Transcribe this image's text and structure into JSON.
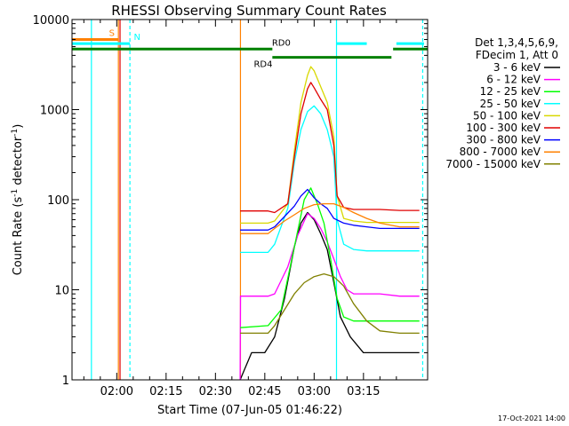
{
  "chart_data": {
    "type": "line",
    "title": "RHESSI Observing Summary Count Rates",
    "xlabel": "Start Time (07-Jun-05 01:46:22)",
    "ylabel_main": "Count Rate (s",
    "ylabel_sup1": "-1",
    "ylabel_mid": " detector",
    "ylabel_sup2": "-1",
    "ylabel_end": ")",
    "yscale": "log",
    "xlim_min": [
      106.4,
      214.5
    ],
    "ylim": [
      1,
      10000
    ],
    "x_ticks": [
      {
        "value": 120,
        "label": "02:00"
      },
      {
        "value": 135,
        "label": "02:15"
      },
      {
        "value": 150,
        "label": "02:30"
      },
      {
        "value": 165,
        "label": "02:45"
      },
      {
        "value": 180,
        "label": "03:00"
      },
      {
        "value": 195,
        "label": "03:15"
      }
    ],
    "y_ticks": [
      {
        "value": 1,
        "label": "1"
      },
      {
        "value": 10,
        "label": "10"
      },
      {
        "value": 100,
        "label": "100"
      },
      {
        "value": 1000,
        "label": "1000"
      },
      {
        "value": 10000,
        "label": "10000"
      }
    ],
    "legend": {
      "header1": "Det 1,3,4,5,6,9,",
      "header2": "FDecim 1, Att 0",
      "entries": [
        {
          "label": "3 - 6 keV",
          "color": "#000000"
        },
        {
          "label": "6 - 12 keV",
          "color": "#ff00ff"
        },
        {
          "label": "12 - 25 keV",
          "color": "#00ff00"
        },
        {
          "label": "25 - 50 keV",
          "color": "#00ffff"
        },
        {
          "label": "50 - 100 keV",
          "color": "#d8d800"
        },
        {
          "label": "100 - 300 keV",
          "color": "#e00000"
        },
        {
          "label": "300 - 800 keV",
          "color": "#0000ff"
        },
        {
          "label": "800 - 7000 keV",
          "color": "#ff8000"
        },
        {
          "label": "7000 - 15000 keV",
          "color": "#808000"
        }
      ]
    },
    "series": [
      {
        "name": "3 - 6 keV",
        "color": "#000000",
        "points": [
          [
            157.5,
            1
          ],
          [
            161,
            2
          ],
          [
            165,
            2
          ],
          [
            168,
            3
          ],
          [
            171,
            8
          ],
          [
            174,
            30
          ],
          [
            176,
            55
          ],
          [
            178,
            72
          ],
          [
            180,
            60
          ],
          [
            182,
            42
          ],
          [
            184,
            28
          ],
          [
            186,
            12
          ],
          [
            188,
            5
          ],
          [
            191,
            3
          ],
          [
            195,
            2
          ],
          [
            200,
            2
          ],
          [
            206,
            2
          ],
          [
            212,
            2
          ]
        ]
      },
      {
        "name": "6 - 12 keV",
        "color": "#ff00ff",
        "points": [
          [
            157.5,
            1
          ],
          [
            157.6,
            8.5
          ],
          [
            166,
            8.5
          ],
          [
            168,
            9
          ],
          [
            172,
            18
          ],
          [
            175,
            40
          ],
          [
            178,
            70
          ],
          [
            180,
            62
          ],
          [
            182,
            48
          ],
          [
            184,
            34
          ],
          [
            186,
            22
          ],
          [
            188,
            14
          ],
          [
            190,
            10
          ],
          [
            192,
            9
          ],
          [
            196,
            9
          ],
          [
            200,
            9
          ],
          [
            206,
            8.5
          ],
          [
            212,
            8.5
          ]
        ]
      },
      {
        "name": "12 - 25 keV",
        "color": "#00ff00",
        "points": [
          [
            157.5,
            3.8
          ],
          [
            166,
            4
          ],
          [
            170,
            6
          ],
          [
            174,
            30
          ],
          [
            177,
            100
          ],
          [
            179,
            135
          ],
          [
            181,
            90
          ],
          [
            183,
            55
          ],
          [
            185,
            22
          ],
          [
            187,
            8
          ],
          [
            189,
            5
          ],
          [
            192,
            4.5
          ],
          [
            196,
            4.5
          ],
          [
            200,
            4.5
          ],
          [
            206,
            4.5
          ],
          [
            212,
            4.5
          ]
        ]
      },
      {
        "name": "25 - 50 keV",
        "color": "#00ffff",
        "points": [
          [
            157.5,
            26
          ],
          [
            166,
            26
          ],
          [
            168,
            32
          ],
          [
            172,
            80
          ],
          [
            174,
            260
          ],
          [
            176,
            600
          ],
          [
            178,
            950
          ],
          [
            180,
            1100
          ],
          [
            182,
            900
          ],
          [
            184,
            600
          ],
          [
            186,
            300
          ],
          [
            187,
            60
          ],
          [
            189,
            32
          ],
          [
            192,
            28
          ],
          [
            196,
            27
          ],
          [
            200,
            27
          ],
          [
            206,
            27
          ],
          [
            212,
            27
          ]
        ]
      },
      {
        "name": "50 - 100 keV",
        "color": "#d8d800",
        "points": [
          [
            157.5,
            55
          ],
          [
            166,
            55
          ],
          [
            168,
            58
          ],
          [
            172,
            90
          ],
          [
            174,
            350
          ],
          [
            176,
            1200
          ],
          [
            178,
            2400
          ],
          [
            179,
            3000
          ],
          [
            180,
            2700
          ],
          [
            182,
            1800
          ],
          [
            184,
            1200
          ],
          [
            186,
            500
          ],
          [
            187,
            110
          ],
          [
            189,
            62
          ],
          [
            192,
            58
          ],
          [
            196,
            56
          ],
          [
            200,
            56
          ],
          [
            206,
            56
          ],
          [
            212,
            56
          ]
        ]
      },
      {
        "name": "100 - 300 keV",
        "color": "#e00000",
        "points": [
          [
            157.5,
            75
          ],
          [
            166,
            75
          ],
          [
            168,
            72
          ],
          [
            172,
            90
          ],
          [
            174,
            300
          ],
          [
            176,
            900
          ],
          [
            178,
            1700
          ],
          [
            179,
            2000
          ],
          [
            180,
            1750
          ],
          [
            182,
            1300
          ],
          [
            184,
            1000
          ],
          [
            186,
            400
          ],
          [
            187,
            110
          ],
          [
            189,
            82
          ],
          [
            192,
            78
          ],
          [
            196,
            78
          ],
          [
            200,
            78
          ],
          [
            206,
            76
          ],
          [
            212,
            76
          ]
        ]
      },
      {
        "name": "300 - 800 keV",
        "color": "#0000ff",
        "points": [
          [
            157.5,
            46
          ],
          [
            166,
            46
          ],
          [
            168,
            50
          ],
          [
            171,
            65
          ],
          [
            174,
            85
          ],
          [
            176,
            110
          ],
          [
            178,
            130
          ],
          [
            180,
            105
          ],
          [
            182,
            90
          ],
          [
            184,
            80
          ],
          [
            186,
            62
          ],
          [
            189,
            55
          ],
          [
            192,
            52
          ],
          [
            196,
            50
          ],
          [
            200,
            48
          ],
          [
            206,
            48
          ],
          [
            212,
            48
          ]
        ]
      },
      {
        "name": "800 - 7000 keV",
        "color": "#ff8000",
        "points": [
          [
            157.5,
            42
          ],
          [
            166,
            42
          ],
          [
            168,
            48
          ],
          [
            171,
            58
          ],
          [
            174,
            68
          ],
          [
            177,
            80
          ],
          [
            180,
            88
          ],
          [
            183,
            90
          ],
          [
            186,
            90
          ],
          [
            189,
            82
          ],
          [
            192,
            72
          ],
          [
            196,
            62
          ],
          [
            200,
            55
          ],
          [
            206,
            50
          ],
          [
            212,
            50
          ]
        ]
      },
      {
        "name": "7000 - 15000 keV",
        "color": "#808000",
        "points": [
          [
            157.5,
            3.3
          ],
          [
            166,
            3.3
          ],
          [
            168,
            4
          ],
          [
            171,
            6
          ],
          [
            174,
            9
          ],
          [
            177,
            12
          ],
          [
            180,
            14
          ],
          [
            183,
            15
          ],
          [
            186,
            14
          ],
          [
            189,
            11
          ],
          [
            192,
            7
          ],
          [
            196,
            4.5
          ],
          [
            200,
            3.5
          ],
          [
            206,
            3.3
          ],
          [
            212,
            3.3
          ]
        ]
      }
    ],
    "vertical_lines": [
      {
        "x": 112.3,
        "color": "#00ffff",
        "style": "solid"
      },
      {
        "x": 120.5,
        "color": "#ff8000",
        "style": "solid"
      },
      {
        "x": 121.0,
        "color": "#e00000",
        "style": "solid"
      },
      {
        "x": 124.0,
        "color": "#00ffff",
        "style": "dashed"
      },
      {
        "x": 157.6,
        "color": "#ff8000",
        "style": "solid"
      },
      {
        "x": 186.8,
        "color": "#00ffff",
        "style": "solid"
      },
      {
        "x": 213.0,
        "color": "#00ffff",
        "style": "dashed"
      }
    ],
    "status_bars": [
      {
        "label": "S",
        "color": "#ff8000",
        "segments": [
          [
            106.4,
            120.6
          ]
        ],
        "y_level": 6000,
        "label_x": 118.5
      },
      {
        "label": "N",
        "color": "#00ffff",
        "segments": [
          [
            106.4,
            124.0
          ],
          [
            186.8,
            196
          ],
          [
            205,
            213.4
          ]
        ],
        "y_level": 5400,
        "label_x": 126.2
      },
      {
        "label": "RD0",
        "color": "#008000",
        "segments": [
          [
            106.4,
            167.3
          ],
          [
            204,
            214.5
          ]
        ],
        "y_level": 4700,
        "label_x": 170.0
      },
      {
        "label": "RD4",
        "color": "#008000",
        "segments": [
          [
            167.3,
            203.5
          ]
        ],
        "y_level": 3800,
        "label_x": 164.5
      }
    ],
    "footer": "17-Oct-2021 14:00"
  }
}
